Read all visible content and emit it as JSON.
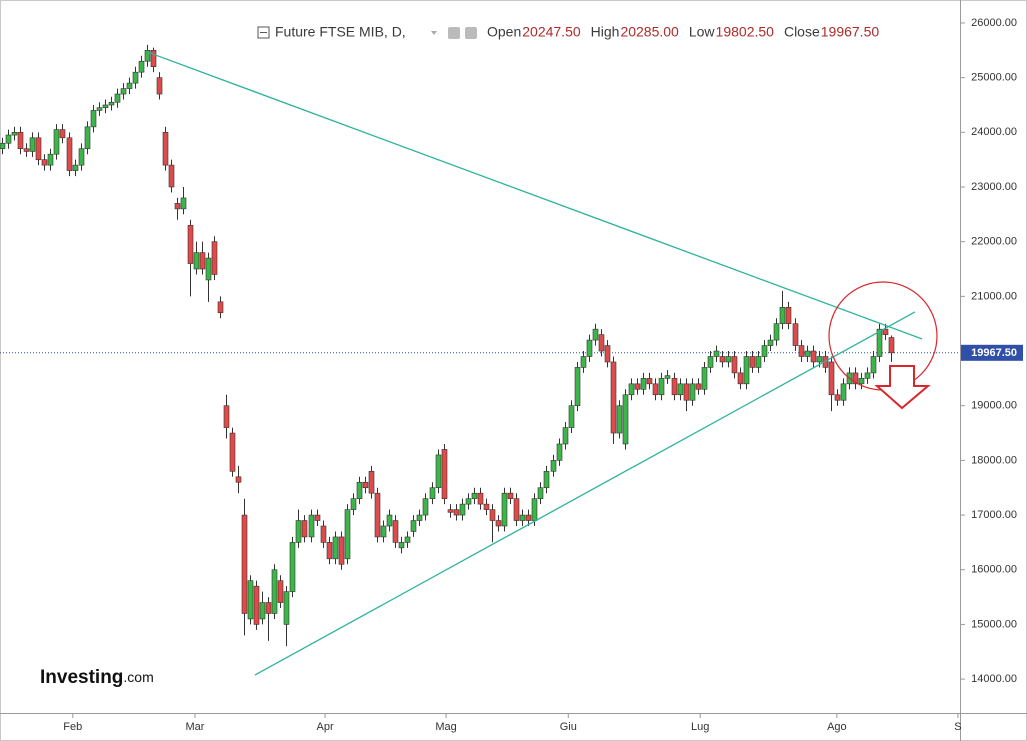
{
  "chart_data": {
    "type": "candlestick",
    "title": "Future FTSE MIB, D,",
    "ohlc_legend": [
      {
        "label": "Open",
        "value": "20247.50"
      },
      {
        "label": "High",
        "value": "20285.00"
      },
      {
        "label": "Low",
        "value": "19802.50"
      },
      {
        "label": "Close",
        "value": "19967.50"
      }
    ],
    "brand": {
      "name": "Investing",
      "suffix": ".com"
    },
    "up_color": "#3cb54a",
    "down_color": "#e04a4a",
    "line_color": "#2db39c",
    "price_line_color": "#2f4fa8",
    "last_price": {
      "value": 19967.5,
      "label": "19967.50"
    },
    "ylim": [
      13380,
      26420
    ],
    "yticks": [
      {
        "value": 14000,
        "label": "14000.00"
      },
      {
        "value": 15000,
        "label": "15000.00"
      },
      {
        "value": 16000,
        "label": "16000.00"
      },
      {
        "value": 17000,
        "label": "17000.00"
      },
      {
        "value": 18000,
        "label": "18000.00"
      },
      {
        "value": 19000,
        "label": "19000.00"
      },
      {
        "value": 20000,
        "label": "20000.00"
      },
      {
        "value": 21000,
        "label": "21000.00"
      },
      {
        "value": 22000,
        "label": "22000.00"
      },
      {
        "value": 23000,
        "label": "23000.00"
      },
      {
        "value": 24000,
        "label": "24000.00"
      },
      {
        "value": 25000,
        "label": "25000.00"
      },
      {
        "value": 26000,
        "label": "26000.00"
      }
    ],
    "xlim": [
      -0.33,
      158.35
    ],
    "xticks": [
      {
        "value": 11.7,
        "label": "Feb"
      },
      {
        "value": 31.9,
        "label": "Mar"
      },
      {
        "value": 53.4,
        "label": "Apr"
      },
      {
        "value": 73.4,
        "label": "Mag"
      },
      {
        "value": 93.6,
        "label": "Giu"
      },
      {
        "value": 115.4,
        "label": "Lug"
      },
      {
        "value": 138.0,
        "label": "Ago"
      },
      {
        "value": 158.0,
        "label": "S"
      }
    ],
    "open": [
      23700,
      23800,
      23950,
      24000,
      23700,
      23650,
      23900,
      23500,
      23400,
      23600,
      24050,
      23900,
      23300,
      23400,
      23700,
      24100,
      24400,
      24450,
      24500,
      24550,
      24700,
      24800,
      24900,
      25100,
      25300,
      25500,
      25000,
      24000,
      23400,
      22700,
      22600,
      22300,
      21500,
      21800,
      21300,
      22000,
      20900,
      19000,
      18500,
      17700,
      17000,
      15100,
      15700,
      15100,
      15400,
      15200,
      15800,
      15000,
      15600,
      16500,
      16900,
      16600,
      17000,
      16800,
      16500,
      16200,
      16600,
      16200,
      17100,
      17300,
      17600,
      17800,
      17400,
      16600,
      16800,
      16900,
      16400,
      16500,
      16700,
      16900,
      17000,
      17300,
      17500,
      18200,
      17100,
      17100,
      17000,
      17200,
      17300,
      17400,
      17200,
      17100,
      16900,
      16800,
      17400,
      17300,
      16900,
      17000,
      16900,
      17300,
      17500,
      17800,
      18000,
      18300,
      18600,
      19000,
      19700,
      19900,
      20200,
      20300,
      20100,
      19800,
      18500,
      18300,
      19200,
      19400,
      19300,
      19500,
      19400,
      19200,
      19500,
      19500,
      19200,
      19400,
      19100,
      19400,
      19300,
      19700,
      19900,
      19900,
      19800,
      19900,
      19600,
      19400,
      19900,
      19700,
      19900,
      20100,
      20200,
      20500,
      20800,
      20500,
      20100,
      19900,
      20000,
      19800,
      19900,
      19800,
      19200,
      19100,
      19400,
      19600,
      19400,
      19500,
      19600,
      19900,
      20400,
      20247.5
    ],
    "high": [
      23900,
      24050,
      24100,
      24100,
      23800,
      24000,
      24000,
      23600,
      23700,
      24150,
      24150,
      24000,
      23500,
      23800,
      24200,
      24500,
      24550,
      24600,
      24650,
      24800,
      24900,
      25000,
      25200,
      25400,
      25600,
      25550,
      25100,
      24100,
      23500,
      22800,
      23000,
      22400,
      22000,
      22000,
      21800,
      22100,
      21000,
      19200,
      18600,
      17900,
      17300,
      15900,
      15800,
      15600,
      15500,
      16100,
      15900,
      15700,
      16600,
      17100,
      17000,
      17100,
      17100,
      16900,
      16600,
      16700,
      16700,
      17200,
      17400,
      17700,
      17700,
      17900,
      17500,
      16900,
      17100,
      17000,
      16600,
      16700,
      17000,
      17100,
      17400,
      17600,
      18200,
      18300,
      17200,
      17200,
      17300,
      17400,
      17500,
      17500,
      17300,
      17200,
      17000,
      17500,
      17500,
      17400,
      17100,
      17100,
      17400,
      17600,
      17900,
      18100,
      18400,
      18700,
      19100,
      19800,
      20000,
      20300,
      20500,
      20400,
      20200,
      19900,
      19100,
      19300,
      19500,
      19500,
      19600,
      19600,
      19500,
      19600,
      19650,
      19600,
      19500,
      19500,
      19500,
      19500,
      19800,
      20000,
      20100,
      20000,
      20000,
      20000,
      19700,
      20000,
      20000,
      20000,
      20200,
      20300,
      20600,
      21100,
      20900,
      20600,
      20200,
      20100,
      20100,
      20000,
      20000,
      19900,
      19300,
      19500,
      19700,
      19700,
      19600,
      19700,
      20000,
      20500,
      20500,
      20285
    ],
    "low": [
      23600,
      23700,
      23850,
      23600,
      23550,
      23550,
      23400,
      23300,
      23300,
      23500,
      23800,
      23200,
      23200,
      23300,
      23600,
      24000,
      24300,
      24350,
      24400,
      24450,
      24600,
      24700,
      24800,
      25000,
      25200,
      25100,
      24600,
      23300,
      22900,
      22400,
      22500,
      21000,
      21400,
      21400,
      20900,
      21300,
      20600,
      18400,
      17700,
      17400,
      14800,
      15000,
      14900,
      15000,
      14700,
      15100,
      15300,
      14600,
      15500,
      16400,
      16500,
      16500,
      16800,
      16400,
      16100,
      16100,
      16000,
      16100,
      17000,
      17200,
      17400,
      17300,
      16500,
      16500,
      16700,
      16400,
      16300,
      16400,
      16600,
      16800,
      16900,
      17200,
      17400,
      17200,
      16950,
      16900,
      16900,
      17100,
      17200,
      17100,
      17000,
      16500,
      16700,
      16700,
      17200,
      16800,
      16800,
      16800,
      16800,
      17200,
      17400,
      17700,
      17900,
      18200,
      18500,
      18900,
      19600,
      19800,
      20100,
      19900,
      19700,
      18300,
      18400,
      18200,
      19100,
      19200,
      19200,
      19300,
      19100,
      19100,
      19400,
      19100,
      19100,
      18900,
      19000,
      19200,
      19200,
      19600,
      19800,
      19700,
      19700,
      19500,
      19300,
      19300,
      19600,
      19600,
      19800,
      20000,
      20100,
      20400,
      20400,
      20000,
      19800,
      19800,
      19700,
      19700,
      19600,
      18900,
      19000,
      19000,
      19300,
      19300,
      19300,
      19400,
      19500,
      19800,
      20200,
      19802.5
    ],
    "close": [
      23800,
      23950,
      24000,
      23700,
      23650,
      23900,
      23500,
      23400,
      23600,
      24050,
      23900,
      23300,
      23400,
      23700,
      24100,
      24400,
      24450,
      24500,
      24550,
      24700,
      24800,
      24900,
      25100,
      25300,
      25500,
      25200,
      24700,
      23400,
      23000,
      22600,
      22800,
      21600,
      21800,
      21500,
      21700,
      21400,
      20700,
      18600,
      17800,
      17600,
      15200,
      15800,
      15000,
      15400,
      15200,
      16000,
      15400,
      15600,
      16500,
      16900,
      16600,
      17000,
      16900,
      16500,
      16200,
      16600,
      16100,
      17100,
      17300,
      17600,
      17500,
      17400,
      16600,
      16800,
      17000,
      16500,
      16500,
      16600,
      16900,
      17000,
      17300,
      17500,
      18100,
      17300,
      17050,
      17000,
      17200,
      17300,
      17400,
      17200,
      17100,
      16900,
      16800,
      17400,
      17300,
      16900,
      17000,
      16900,
      17300,
      17500,
      17800,
      18000,
      18300,
      18600,
      19000,
      19700,
      19900,
      20200,
      20400,
      20000,
      19800,
      18500,
      19000,
      19200,
      19400,
      19300,
      19500,
      19400,
      19200,
      19500,
      19550,
      19200,
      19400,
      19100,
      19400,
      19300,
      19700,
      19900,
      20000,
      19800,
      19900,
      19600,
      19400,
      19900,
      19700,
      19900,
      20100,
      20200,
      20500,
      20800,
      20500,
      20100,
      19900,
      20000,
      19800,
      19900,
      19700,
      19200,
      19100,
      19400,
      19600,
      19400,
      19500,
      19600,
      19900,
      20400,
      20300,
      19967.5
    ],
    "trend_lines": [
      {
        "x": [
          24,
          152.1
        ],
        "y": [
          25470,
          20220
        ]
      },
      {
        "x": [
          41.8,
          150.9
        ],
        "y": [
          14074,
          20714
        ]
      }
    ]
  }
}
